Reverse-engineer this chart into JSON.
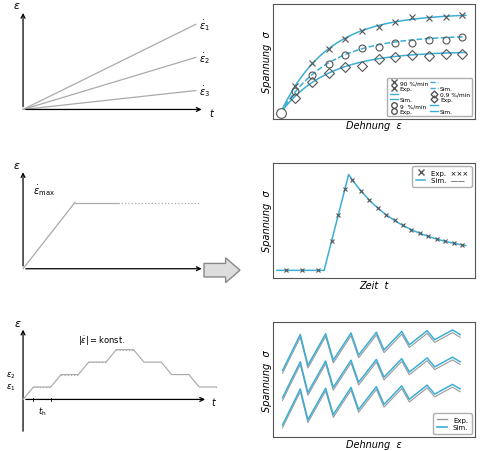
{
  "bg_color": "#ffffff",
  "line_color_gray": "#aaaaaa",
  "line_color_cyan": "#3baed6",
  "line_color_gray_exp": "#999999",
  "marker_color": "#555555",
  "xlabel_top": "Dehnung  ε",
  "ylabel_top": "Spannung  σ",
  "xlabel_mid": "Zeit  t",
  "ylabel_mid": "Spannung  σ",
  "xlabel_bot": "Dehnung  ε",
  "ylabel_bot": "Spannung  σ",
  "arrow_fc": "#dddddd",
  "arrow_ec": "#888888"
}
